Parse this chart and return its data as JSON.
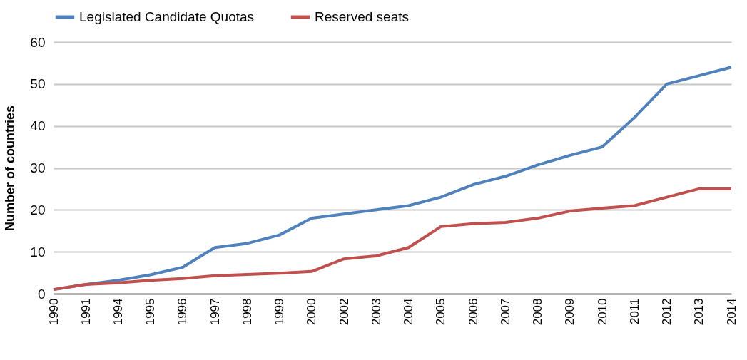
{
  "chart_data": {
    "type": "line",
    "ylabel": "Number of countries",
    "categories": [
      "1990",
      "1991",
      "1994",
      "1995",
      "1996",
      "1997",
      "1998",
      "1999",
      "2000",
      "2002",
      "2003",
      "2004",
      "2005",
      "2006",
      "2007",
      "2008",
      "2009",
      "2010",
      "2011",
      "2012",
      "2013",
      "2014"
    ],
    "series": [
      {
        "name": "Legislated Candidate Quotas",
        "color": "#4f81bd",
        "values": [
          1,
          2.2,
          3.2,
          4.5,
          6.3,
          11,
          12,
          14,
          18,
          19,
          20,
          21,
          23,
          26,
          28,
          30.7,
          33,
          35,
          42,
          50,
          52,
          54
        ]
      },
      {
        "name": "Reserved seats",
        "color": "#c0504d",
        "values": [
          1,
          2.2,
          2.6,
          3.2,
          3.6,
          4.3,
          4.6,
          4.9,
          5.3,
          8.3,
          9,
          11,
          16,
          16.7,
          17,
          18,
          19.7,
          20.4,
          21,
          23,
          25,
          25
        ]
      }
    ],
    "ylim": [
      0,
      60
    ],
    "yticks": [
      0,
      10,
      20,
      30,
      40,
      50,
      60
    ],
    "grid": "y",
    "legend": "top",
    "line_style": "solid"
  }
}
